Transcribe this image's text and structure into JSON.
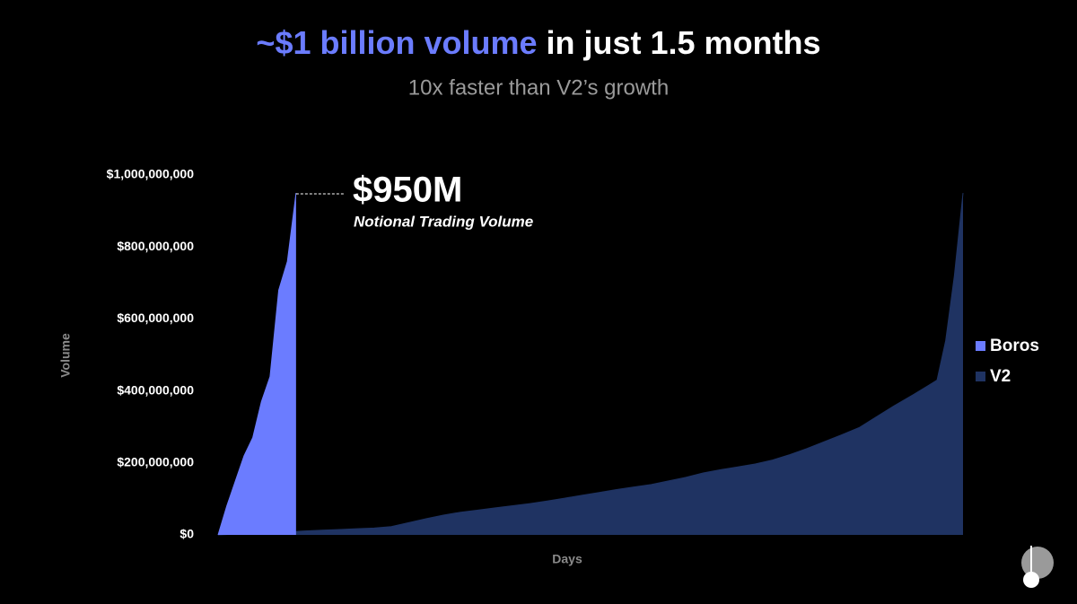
{
  "chart_data": {
    "type": "area",
    "title": [
      "~$1 billion volume",
      "in just 1.5 months"
    ],
    "subtitle": "10x faster than V2’s growth",
    "x_label": "Days",
    "y_label": "Volume",
    "ylim": [
      0,
      1000000000
    ],
    "yticks": [
      {
        "value": 0,
        "label": "$0"
      },
      {
        "value": 200000000,
        "label": "$200,000,000"
      },
      {
        "value": 400000000,
        "label": "$400,000,000"
      },
      {
        "value": 600000000,
        "label": "$600,000,000"
      },
      {
        "value": 800000000,
        "label": "$800,000,000"
      },
      {
        "value": 1000000000,
        "label": "$1,000,000,000"
      }
    ],
    "xlim": [
      0,
      430
    ],
    "legend": "right",
    "annotation": {
      "text": "$950M",
      "subtext": "Notional Trading Volume"
    },
    "series": [
      {
        "name": "V2",
        "color": "#1f3362",
        "x": [
          0,
          10,
          20,
          30,
          40,
          50,
          60,
          70,
          80,
          90,
          100,
          110,
          120,
          130,
          140,
          150,
          160,
          170,
          180,
          190,
          200,
          210,
          220,
          230,
          240,
          250,
          260,
          270,
          280,
          290,
          300,
          310,
          320,
          330,
          340,
          350,
          360,
          370,
          380,
          390,
          400,
          410,
          415,
          420,
          425,
          430
        ],
        "values": [
          0,
          2000000,
          3000000,
          5000000,
          8000000,
          11000000,
          13000000,
          15000000,
          17000000,
          19000000,
          23000000,
          34000000,
          45000000,
          55000000,
          63000000,
          69000000,
          75000000,
          81000000,
          87000000,
          94000000,
          102000000,
          110000000,
          118000000,
          126000000,
          133000000,
          140000000,
          150000000,
          160000000,
          172000000,
          181000000,
          189000000,
          197000000,
          208000000,
          223000000,
          240000000,
          259000000,
          278000000,
          298000000,
          328000000,
          358000000,
          386000000,
          415000000,
          430000000,
          540000000,
          720000000,
          950000000
        ]
      },
      {
        "name": "Boros",
        "color": "#6b7cff",
        "x": [
          0,
          5,
          10,
          15,
          20,
          25,
          30,
          35,
          40,
          45
        ],
        "values": [
          0,
          80000000,
          150000000,
          220000000,
          270000000,
          370000000,
          440000000,
          680000000,
          760000000,
          950000000
        ]
      }
    ]
  }
}
